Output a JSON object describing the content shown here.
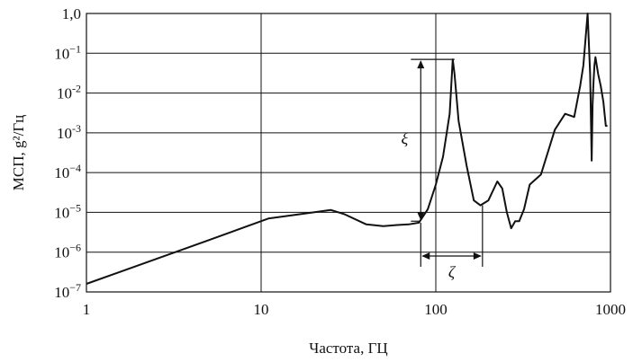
{
  "chart_data": {
    "type": "line",
    "title": "",
    "xlabel": "Частота, ГЦ",
    "ylabel": "МСП, g²/Гц",
    "xscale": "log",
    "yscale": "log",
    "xlim": [
      1,
      1000
    ],
    "ylim": [
      1e-07,
      1
    ],
    "grid": true,
    "x_ticks": [
      {
        "value": 1,
        "label": "1"
      },
      {
        "value": 10,
        "label": "10"
      },
      {
        "value": 100,
        "label": "100"
      },
      {
        "value": 1000,
        "label": "1000"
      }
    ],
    "y_ticks": [
      {
        "value": 1,
        "label": "1,0"
      },
      {
        "value": 0.1,
        "base": "10",
        "exp": "−1"
      },
      {
        "value": 0.01,
        "base": "10",
        "exp": "-2"
      },
      {
        "value": 0.001,
        "base": "10",
        "exp": "-3"
      },
      {
        "value": 0.0001,
        "base": "10",
        "exp": "−4"
      },
      {
        "value": 1e-05,
        "base": "10",
        "exp": "−5"
      },
      {
        "value": 1e-06,
        "base": "10",
        "exp": "−6"
      },
      {
        "value": 1e-07,
        "base": "10",
        "exp": "−7"
      }
    ],
    "series": [
      {
        "color": "#111111",
        "x": [
          1,
          5,
          11,
          20,
          25,
          30,
          40,
          50,
          60,
          70,
          80,
          90,
          100,
          110,
          120,
          125,
          128,
          135,
          150,
          165,
          180,
          200,
          225,
          240,
          255,
          270,
          285,
          300,
          320,
          345,
          400,
          480,
          550,
          620,
          670,
          700,
          740,
          765,
          780,
          790,
          800,
          810,
          820,
          850,
          880,
          910,
          940,
          960
        ],
        "y": [
          1.6e-07,
          2e-06,
          7e-06,
          1e-05,
          1.15e-05,
          9e-06,
          5e-06,
          4.5e-06,
          4.8e-06,
          5e-06,
          5.5e-06,
          1.2e-05,
          5e-05,
          0.00025,
          0.003,
          0.07,
          0.03,
          0.002,
          0.00015,
          2e-05,
          1.5e-05,
          2e-05,
          6e-05,
          4e-05,
          1e-05,
          4e-06,
          6e-06,
          6e-06,
          1.2e-05,
          5e-05,
          9e-05,
          0.0012,
          0.003,
          0.0025,
          0.015,
          0.05,
          1.0,
          0.03,
          0.0002,
          0.005,
          0.02,
          0.05,
          0.08,
          0.03,
          0.015,
          0.006,
          0.0015,
          0.0015
        ]
      }
    ],
    "annotations": [
      {
        "symbol": "ξ",
        "type": "vertical-span",
        "x": 82,
        "y_from": 6e-06,
        "y_to": 0.07,
        "ext_from_x": 72,
        "ext_to_x": 128
      },
      {
        "symbol": "ζ",
        "type": "horizontal-span",
        "y": 8e-07,
        "x_from": 82,
        "x_to": 185,
        "ext_from_y": 5.5e-06,
        "ext_to_y": 1.5e-05
      }
    ]
  }
}
